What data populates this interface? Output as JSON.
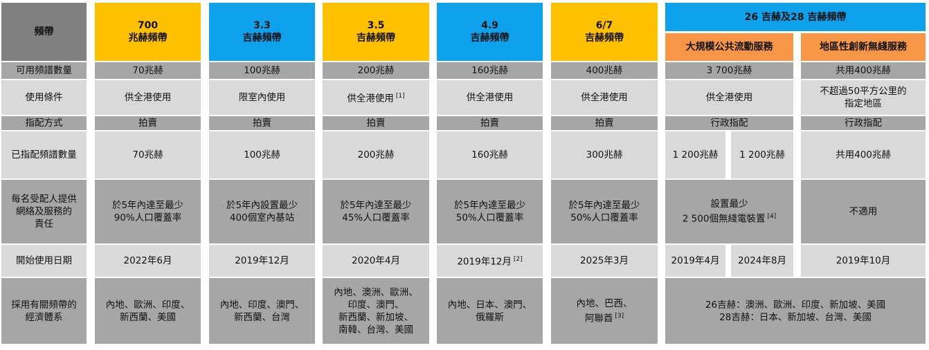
{
  "header": {
    "label": "頻帶",
    "bands": [
      {
        "title": "700",
        "subtitle": "兆赫頻帶"
      },
      {
        "title": "3.3",
        "subtitle": "吉赫頻帶"
      },
      {
        "title": "3.5",
        "subtitle": "吉赫頻帶"
      },
      {
        "title": "4.9",
        "subtitle": "吉赫頻帶"
      },
      {
        "title": "6/7",
        "subtitle": "吉赫頻帶"
      }
    ],
    "group": {
      "title": "26 吉赫及28 吉赫頻帶",
      "subheaders": [
        "大規模公共流動服務",
        "地區性創新無綫服務"
      ]
    }
  },
  "rows": [
    {
      "label": [
        "可用頻譜數量"
      ],
      "cells": [
        {
          "lines": [
            "70兆赫"
          ]
        },
        {
          "lines": [
            "100兆赫"
          ]
        },
        {
          "lines": [
            "200兆赫"
          ]
        },
        {
          "lines": [
            "160兆赫"
          ]
        },
        {
          "lines": [
            "400兆赫"
          ]
        },
        {
          "lines": [
            "3 700兆赫"
          ]
        },
        {
          "lines": [
            "共用400兆赫"
          ]
        }
      ]
    },
    {
      "label": [
        "使用條件"
      ],
      "cells": [
        {
          "lines": [
            "供全港使用"
          ]
        },
        {
          "lines": [
            "限室內使用"
          ]
        },
        {
          "lines": [
            "供全港使用"
          ],
          "note": "[1]"
        },
        {
          "lines": [
            "供全港使用"
          ]
        },
        {
          "lines": [
            "供全港使用"
          ]
        },
        {
          "lines": [
            "供全港使用"
          ]
        },
        {
          "lines": [
            "不超過50平方公里的",
            "指定地區"
          ]
        }
      ]
    },
    {
      "label": [
        "指配方式"
      ],
      "cells": [
        {
          "lines": [
            "拍賣"
          ]
        },
        {
          "lines": [
            "拍賣"
          ]
        },
        {
          "lines": [
            "拍賣"
          ]
        },
        {
          "lines": [
            "拍賣"
          ]
        },
        {
          "lines": [
            "拍賣"
          ]
        },
        {
          "lines": [
            "行政指配"
          ]
        },
        {
          "lines": [
            "行政指配"
          ]
        }
      ]
    },
    {
      "label": [
        "已指配頻譜數量"
      ],
      "cells": [
        {
          "lines": [
            "70兆赫"
          ]
        },
        {
          "lines": [
            "100兆赫"
          ]
        },
        {
          "lines": [
            "200兆赫"
          ]
        },
        {
          "lines": [
            "160兆赫"
          ]
        },
        {
          "lines": [
            "300兆赫"
          ]
        },
        {
          "lines": [
            "1 200兆赫"
          ]
        },
        {
          "lines": [
            "1 200兆赫"
          ]
        },
        {
          "lines": [
            "共用400兆赫"
          ]
        }
      ]
    },
    {
      "label": [
        "每名受配人提供",
        "網絡及服務的",
        "責任"
      ],
      "cells": [
        {
          "lines": [
            "於5年內達至最少",
            "90%人口覆蓋率"
          ]
        },
        {
          "lines": [
            "於5年內設置最少",
            "400個室內基站"
          ]
        },
        {
          "lines": [
            "於5年內達至最少",
            "45%人口覆蓋率"
          ]
        },
        {
          "lines": [
            "於5年內達至最少",
            "50%人口覆蓋率"
          ]
        },
        {
          "lines": [
            "於5年內達至最少",
            "50%人口覆蓋率"
          ]
        },
        {
          "lines": [
            "設置最少",
            "2 500個無綫電裝置"
          ],
          "note": "[4]"
        },
        {
          "lines": [
            "不適用"
          ]
        }
      ]
    },
    {
      "label": [
        "開始使用日期"
      ],
      "cells": [
        {
          "lines": [
            "2022年6月"
          ]
        },
        {
          "lines": [
            "2019年12月"
          ]
        },
        {
          "lines": [
            "2020年4月"
          ]
        },
        {
          "lines": [
            "2019年12月"
          ],
          "note": "[2]"
        },
        {
          "lines": [
            "2025年3月"
          ]
        },
        {
          "lines": [
            "2019年4月"
          ]
        },
        {
          "lines": [
            "2024年8月"
          ]
        },
        {
          "lines": [
            "2019年10月"
          ]
        }
      ]
    },
    {
      "label": [
        "採用有關頻帶的",
        "經濟體系"
      ],
      "cells": [
        {
          "lines": [
            "內地、歐洲、印度、",
            "新西蘭、美國"
          ]
        },
        {
          "lines": [
            "內地、印度、澳門、",
            "新西蘭、台灣"
          ]
        },
        {
          "lines": [
            "內地、澳洲、歐洲、",
            "印度、澳門、",
            "新西蘭、新加坡、",
            "南韓、台灣、美國"
          ]
        },
        {
          "lines": [
            "內地、日本、澳門、",
            "俄羅斯"
          ]
        },
        {
          "lines": [
            "內地、巴西、",
            "阿聯酋"
          ],
          "note": "[3]"
        },
        {
          "lines": [
            "26吉赫：澳洲、歐洲、印度、新加坡、美國",
            "28吉赫：日本、新加坡、台灣、美國"
          ]
        }
      ]
    }
  ]
}
